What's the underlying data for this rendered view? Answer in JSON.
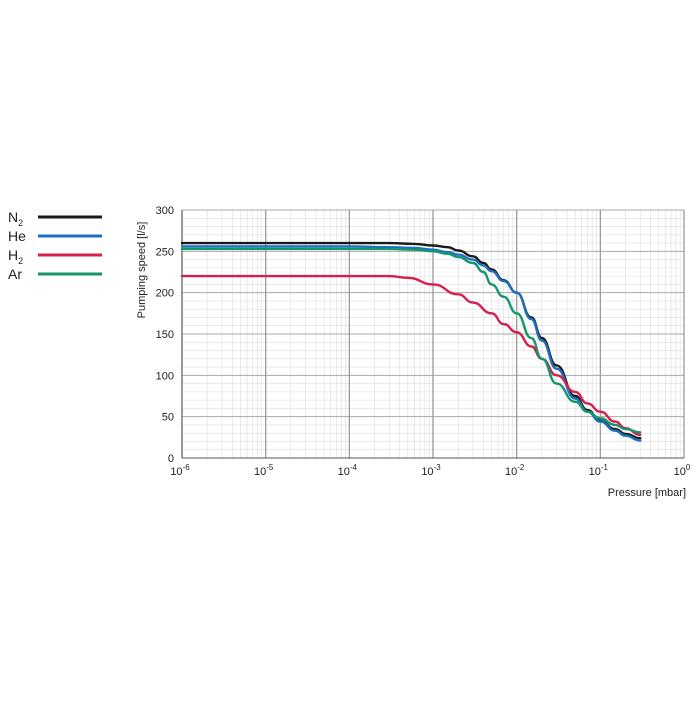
{
  "chart_data": {
    "type": "line",
    "xlabel": "Pressure [mbar]",
    "ylabel": "Pumping speed [l/s]",
    "xscale": "log",
    "xlim": [
      1e-06,
      1
    ],
    "ylim": [
      0,
      300
    ],
    "grid": true,
    "legend_position": "left",
    "x_ticks": [
      {
        "base": "10",
        "exp": "-6"
      },
      {
        "base": "10",
        "exp": "-5"
      },
      {
        "base": "10",
        "exp": "-4"
      },
      {
        "base": "10",
        "exp": "-3"
      },
      {
        "base": "10",
        "exp": "-2"
      },
      {
        "base": "10",
        "exp": "-1"
      },
      {
        "base": "10",
        "exp": "0"
      }
    ],
    "y_ticks": [
      0,
      50,
      100,
      150,
      200,
      250,
      300
    ],
    "series": [
      {
        "name": "N",
        "sub": "2",
        "color": "#1a1a1a",
        "x": [
          1e-06,
          1e-05,
          0.0001,
          0.0003,
          0.0006,
          0.001,
          0.0015,
          0.002,
          0.003,
          0.004,
          0.005,
          0.007,
          0.01,
          0.015,
          0.02,
          0.03,
          0.05,
          0.07,
          0.1,
          0.15,
          0.2,
          0.3
        ],
        "y": [
          260,
          260,
          260,
          260,
          259,
          257,
          255,
          251,
          244,
          236,
          228,
          215,
          200,
          170,
          145,
          112,
          75,
          58,
          45,
          35,
          29,
          24
        ]
      },
      {
        "name": "He",
        "sub": "",
        "color": "#1f6fbf",
        "x": [
          1e-06,
          1e-05,
          0.0001,
          0.0003,
          0.0006,
          0.001,
          0.0015,
          0.002,
          0.003,
          0.004,
          0.005,
          0.007,
          0.01,
          0.015,
          0.02,
          0.03,
          0.05,
          0.07,
          0.1,
          0.15,
          0.2,
          0.3
        ],
        "y": [
          256,
          256,
          256,
          255,
          254,
          252,
          249,
          246,
          240,
          233,
          226,
          214,
          200,
          168,
          142,
          108,
          72,
          56,
          44,
          33,
          27,
          21
        ]
      },
      {
        "name": "H",
        "sub": "2",
        "color": "#d6204a",
        "x": [
          1e-06,
          1e-05,
          0.0001,
          0.0003,
          0.0005,
          0.001,
          0.002,
          0.003,
          0.005,
          0.007,
          0.01,
          0.015,
          0.02,
          0.03,
          0.05,
          0.07,
          0.1,
          0.15,
          0.2,
          0.3
        ],
        "y": [
          220,
          220,
          220,
          220,
          218,
          210,
          198,
          188,
          175,
          162,
          152,
          135,
          120,
          100,
          80,
          66,
          56,
          44,
          36,
          28
        ]
      },
      {
        "name": "Ar",
        "sub": "",
        "color": "#14966e",
        "x": [
          1e-06,
          1e-05,
          0.0001,
          0.0003,
          0.0006,
          0.001,
          0.0015,
          0.002,
          0.003,
          0.004,
          0.005,
          0.007,
          0.01,
          0.015,
          0.02,
          0.03,
          0.05,
          0.07,
          0.1,
          0.15,
          0.2,
          0.3
        ],
        "y": [
          253,
          253,
          253,
          253,
          252,
          250,
          247,
          243,
          236,
          225,
          210,
          195,
          175,
          145,
          120,
          90,
          68,
          56,
          48,
          40,
          35,
          31
        ]
      }
    ]
  }
}
